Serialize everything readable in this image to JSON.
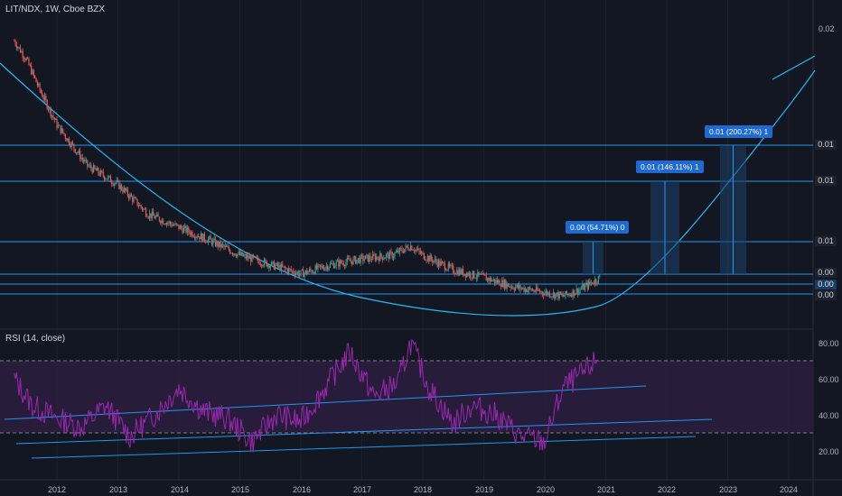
{
  "main_title": "LIT/NDX, 1W, Cboe BZX",
  "rsi_title": "RSI (14, close)",
  "price_axis": [
    "0.02",
    "0.01",
    "0.01",
    "0.01",
    "0.00",
    "0.00",
    "0.00"
  ],
  "rsi_axis": [
    "80.00",
    "60.00",
    "40.00",
    "20.00"
  ],
  "time_axis": [
    "2012",
    "2013",
    "2014",
    "2015",
    "2016",
    "2017",
    "2018",
    "2019",
    "2020",
    "2021",
    "2022",
    "2023",
    "2024"
  ],
  "callouts": [
    "0.00 (54.71%) 0",
    "0.01 (146.11%) 1",
    "0.01 (200.27%) 1"
  ],
  "colors": {
    "background": "#131722",
    "up_candle": "#26a69a",
    "down_candle": "#ef5350",
    "trend_line": "#2196f3",
    "curve": "#29b6f6",
    "rsi_line": "#9c27b0",
    "rsi_band": "#2a1e3e",
    "callout": "#1e6ad2"
  },
  "chart_data": [
    {
      "type": "candlestick",
      "title": "LIT/NDX, 1W, Cboe BZX",
      "x_range": [
        "2011",
        "2024"
      ],
      "ylim": [
        0.0,
        0.02
      ],
      "x": [
        2011.3,
        2011.5,
        2011.7,
        2012.0,
        2012.5,
        2013.0,
        2013.5,
        2014.0,
        2014.5,
        2015.0,
        2015.5,
        2016.0,
        2016.5,
        2017.0,
        2017.5,
        2017.8,
        2018.0,
        2018.5,
        2019.0,
        2019.5,
        2020.0,
        2020.3,
        2020.6,
        2020.9
      ],
      "y": [
        0.0195,
        0.0185,
        0.017,
        0.015,
        0.0128,
        0.0118,
        0.0102,
        0.0095,
        0.0088,
        0.008,
        0.0075,
        0.007,
        0.0075,
        0.0078,
        0.008,
        0.0085,
        0.008,
        0.0072,
        0.0068,
        0.0063,
        0.006,
        0.0058,
        0.0062,
        0.0068
      ]
    },
    {
      "type": "line",
      "title": "RSI (14, close)",
      "ylim": [
        12,
        83
      ],
      "levels": [
        70,
        30
      ],
      "x": [
        2011.3,
        2011.6,
        2012.0,
        2012.4,
        2012.8,
        2013.2,
        2013.6,
        2014.0,
        2014.4,
        2014.8,
        2015.2,
        2015.6,
        2016.0,
        2016.4,
        2016.8,
        2017.2,
        2017.6,
        2017.8,
        2018.1,
        2018.5,
        2018.8,
        2019.2,
        2019.6,
        2020.0,
        2020.3,
        2020.6,
        2020.9
      ],
      "y": [
        60,
        45,
        38,
        33,
        45,
        28,
        40,
        55,
        42,
        38,
        25,
        40,
        36,
        55,
        75,
        50,
        58,
        80,
        55,
        35,
        45,
        40,
        28,
        25,
        55,
        62,
        72
      ]
    }
  ]
}
